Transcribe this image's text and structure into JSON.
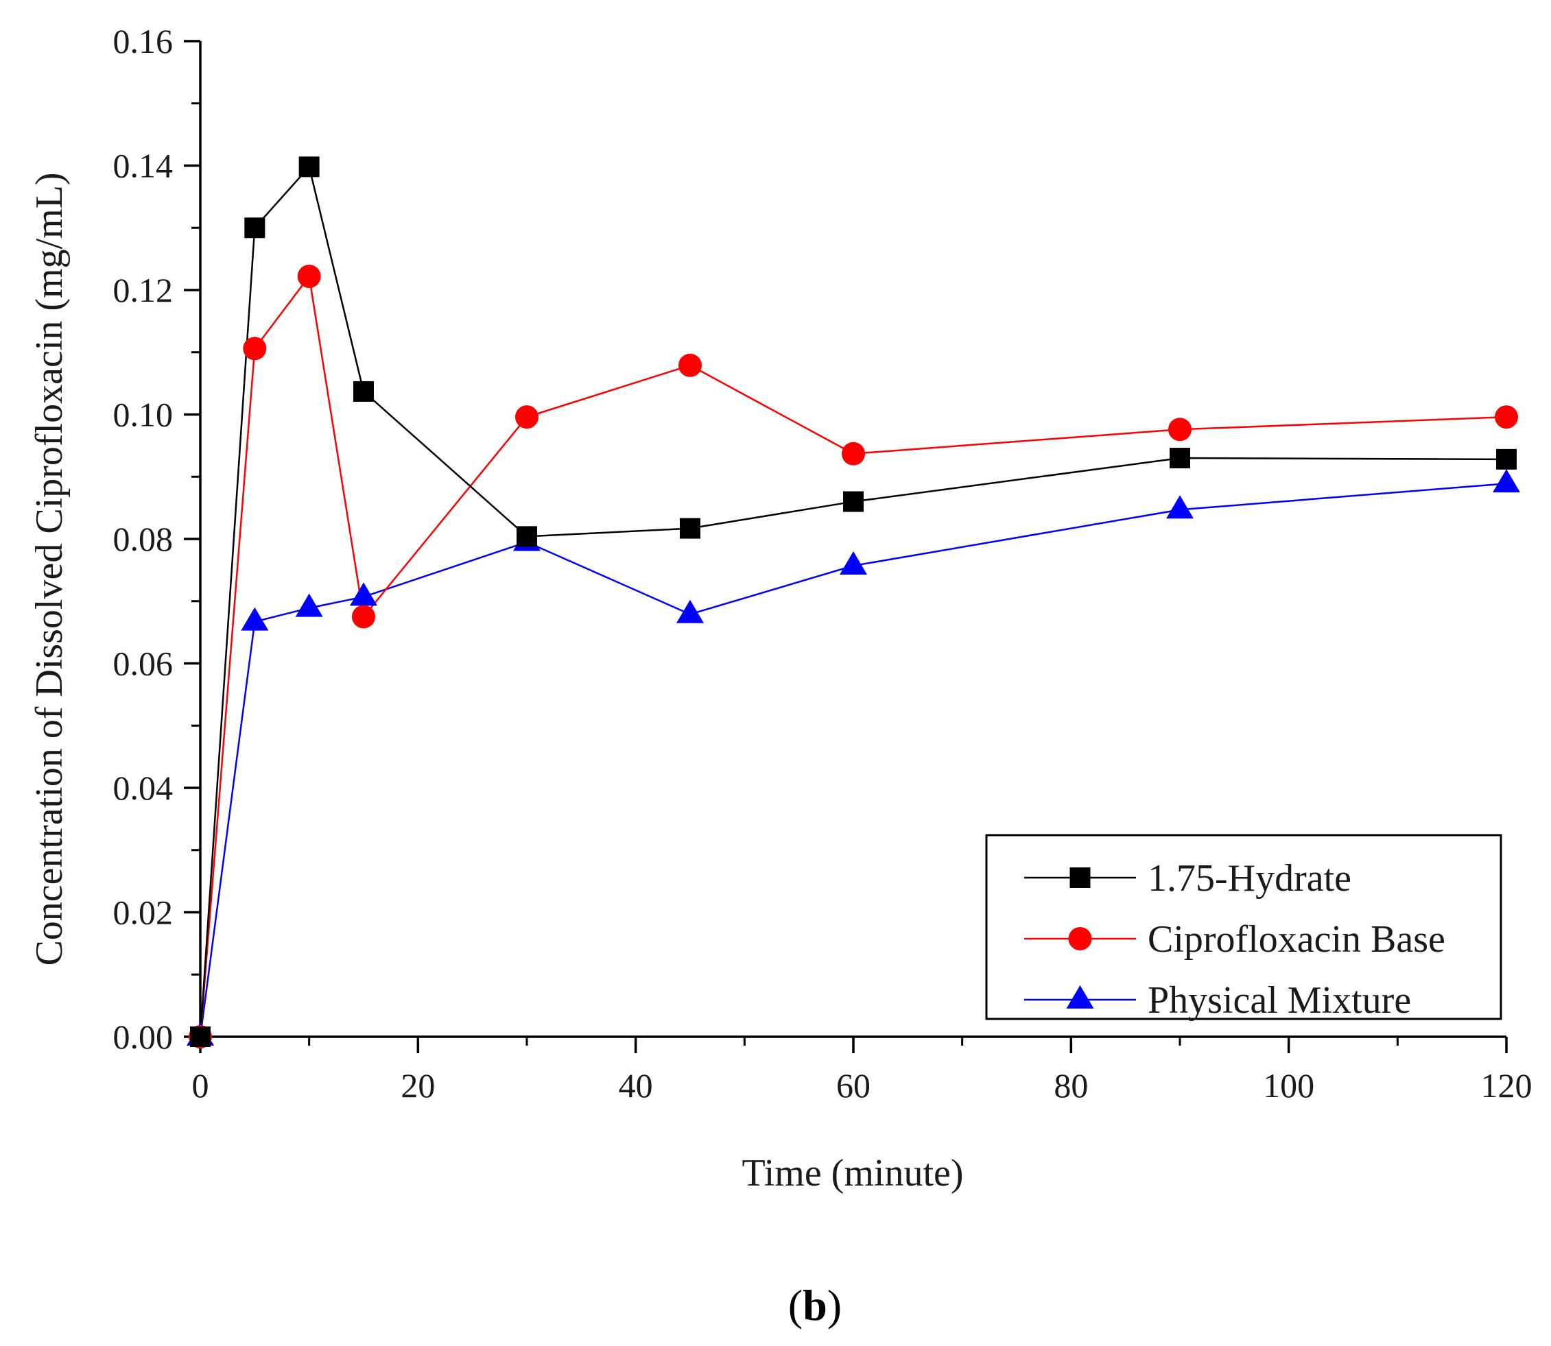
{
  "chart_data": {
    "type": "line",
    "title": "",
    "xlabel": "Time (minute)",
    "ylabel": "Concentration of Dissolved Ciprofloxacin (mg/mL)",
    "xlim": [
      0,
      120
    ],
    "ylim": [
      0,
      0.16
    ],
    "x_ticks": [
      "0",
      "20",
      "40",
      "60",
      "80",
      "100",
      "120"
    ],
    "y_ticks": [
      "0.00",
      "0.02",
      "0.04",
      "0.06",
      "0.08",
      "0.10",
      "0.12",
      "0.14",
      "0.16"
    ],
    "grid": false,
    "legend_position": "bottom-right",
    "x": [
      0,
      5,
      10,
      15,
      30,
      45,
      60,
      90,
      120
    ],
    "series": [
      {
        "name": "1.75-Hydrate",
        "color": "#000000",
        "marker": "square",
        "values": [
          0.0,
          0.13,
          0.1398,
          0.1037,
          0.0804,
          0.0817,
          0.086,
          0.093,
          0.0928
        ]
      },
      {
        "name": "Ciprofloxacin Base",
        "color": "#ff0000",
        "marker": "circle",
        "values": [
          0.0,
          0.1106,
          0.1222,
          0.0675,
          0.0996,
          0.1079,
          0.0937,
          0.0976,
          0.0996
        ]
      },
      {
        "name": "Physical Mixture",
        "color": "#0000ff",
        "marker": "triangle",
        "values": [
          0.0,
          0.0667,
          0.0689,
          0.0707,
          0.0795,
          0.0679,
          0.0757,
          0.0847,
          0.0889
        ]
      }
    ]
  },
  "panel_label": {
    "open": "(",
    "letter": "b",
    "close": ")"
  }
}
